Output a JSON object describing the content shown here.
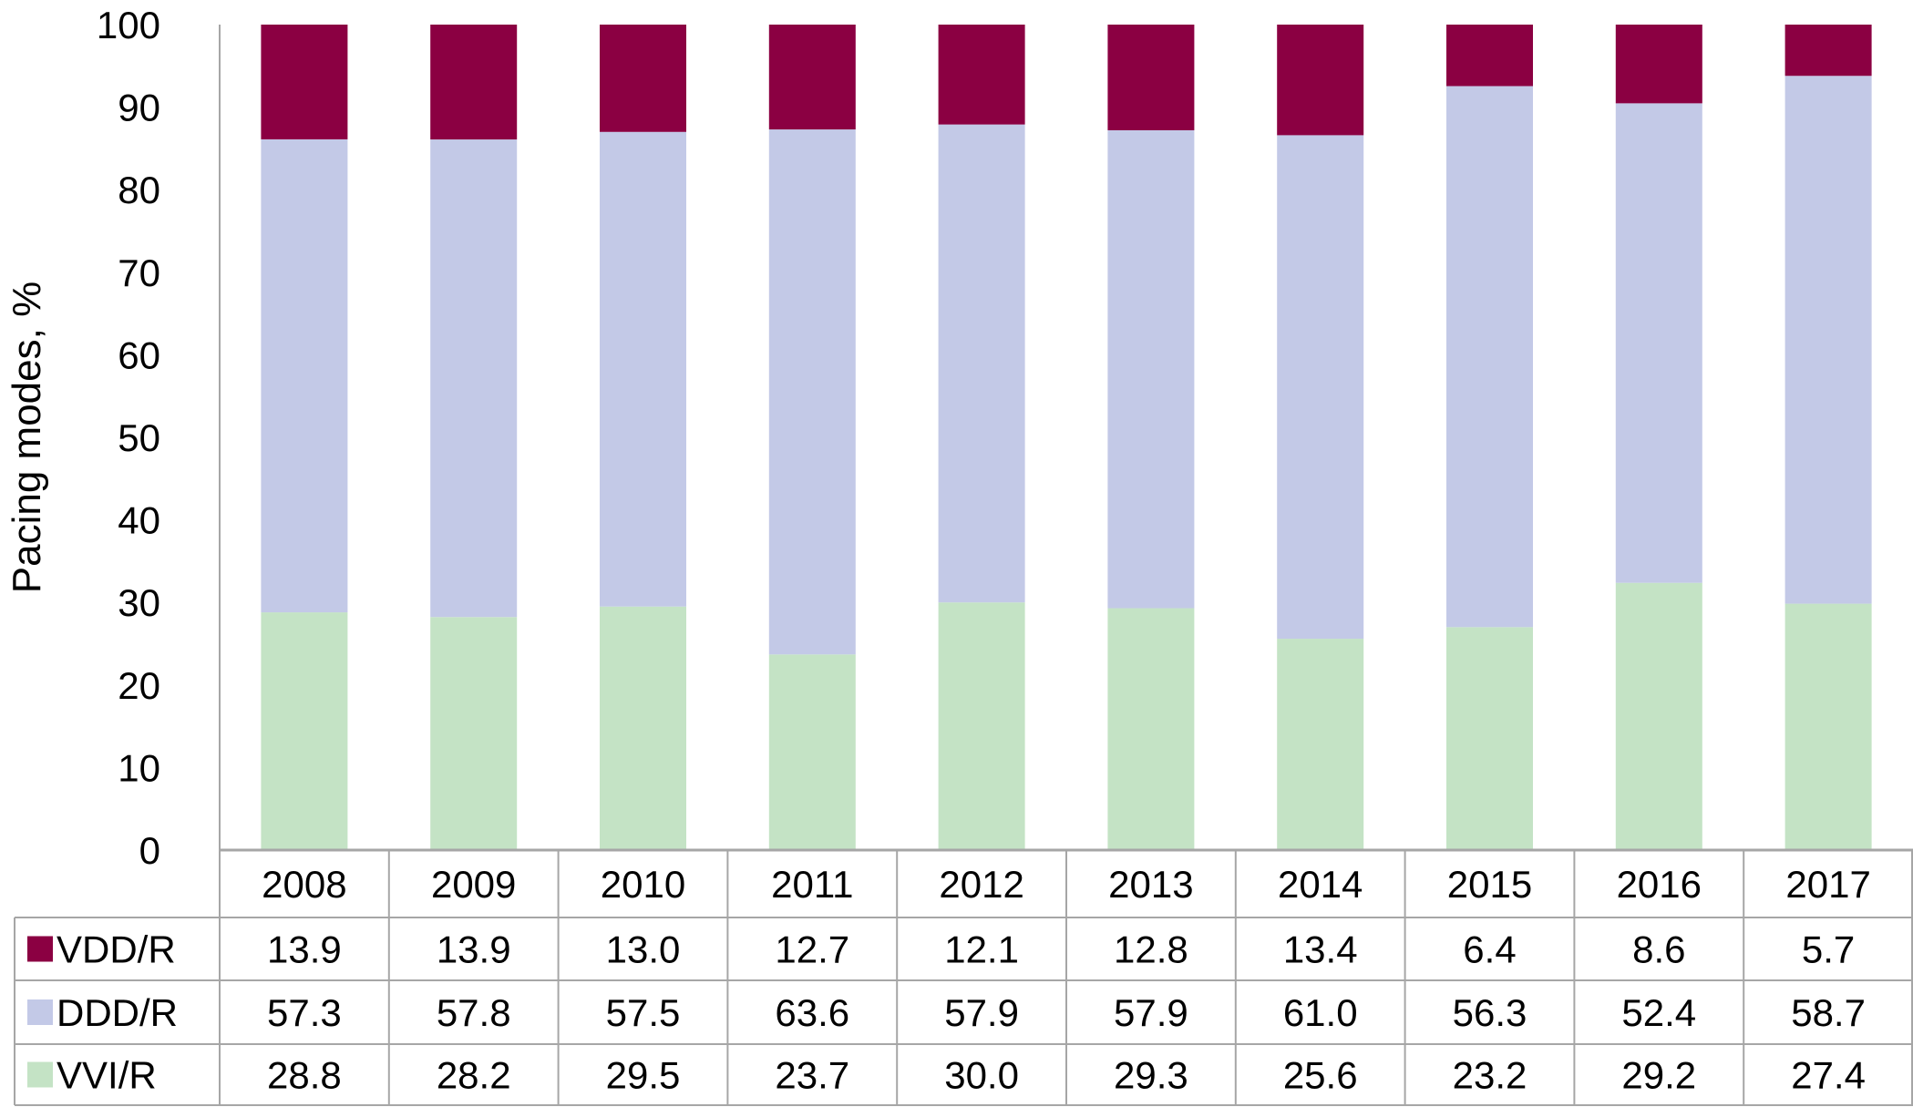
{
  "chart_data": {
    "type": "bar",
    "stacked": "percent",
    "ylabel": "Pacing modes, %",
    "xlabel": "",
    "ylim": [
      0,
      100
    ],
    "yticks": [
      "0",
      "10",
      "20",
      "30",
      "40",
      "50",
      "60",
      "70",
      "80",
      "90",
      "100"
    ],
    "grid": false,
    "legend": "data-table-left",
    "categories": [
      "2008",
      "2009",
      "2010",
      "2011",
      "2012",
      "2013",
      "2014",
      "2015",
      "2016",
      "2017"
    ],
    "series": [
      {
        "name": "VVI/R",
        "color": "#c4e3c5",
        "values": [
          "28.8",
          "28.2",
          "29.5",
          "23.7",
          "30.0",
          "29.3",
          "25.6",
          "23.2",
          "29.2",
          "27.4"
        ]
      },
      {
        "name": "DDD/R",
        "color": "#c3c9e7",
        "values": [
          "57.3",
          "57.8",
          "57.5",
          "63.6",
          "57.9",
          "57.9",
          "61.0",
          "56.3",
          "52.4",
          "58.7"
        ]
      },
      {
        "name": "VDD/R",
        "color": "#8b0042",
        "values": [
          "13.9",
          "13.9",
          "13.0",
          "12.7",
          "12.1",
          "12.8",
          "13.4",
          "6.4",
          "8.6",
          "5.7"
        ]
      }
    ],
    "table_row_order": [
      "VDD/R",
      "DDD/R",
      "VVI/R"
    ]
  }
}
